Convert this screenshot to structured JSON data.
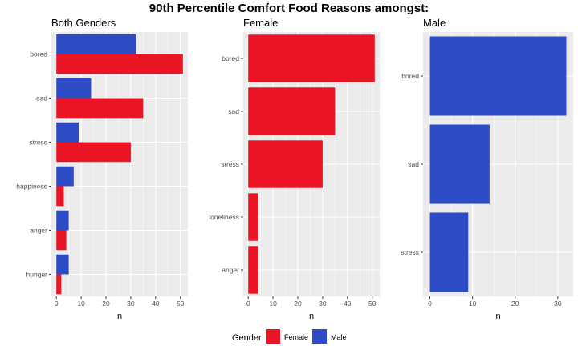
{
  "title": "90th Percentile Comfort Food Reasons amongst:",
  "chart_data": [
    {
      "type": "bar",
      "orientation": "horizontal",
      "title": "Both Genders",
      "xlabel": "n",
      "ylabel": "",
      "xlim": [
        -2,
        53
      ],
      "xticks": [
        0,
        10,
        20,
        30,
        40,
        50
      ],
      "categories": [
        "bored",
        "sad",
        "stress",
        "happiness",
        "anger",
        "hunger"
      ],
      "series": [
        {
          "name": "Male",
          "color": "#2E4BC6",
          "values": [
            32,
            14,
            9,
            7,
            5,
            5
          ]
        },
        {
          "name": "Female",
          "color": "#EA1424",
          "values": [
            51,
            35,
            30,
            3,
            4,
            2
          ]
        }
      ],
      "grid": true
    },
    {
      "type": "bar",
      "orientation": "horizontal",
      "title": "Female",
      "xlabel": "n",
      "ylabel": "",
      "xlim": [
        -2,
        53
      ],
      "xticks": [
        0,
        10,
        20,
        30,
        40,
        50
      ],
      "categories": [
        "bored",
        "sad",
        "stress",
        "loneliness",
        "anger"
      ],
      "series": [
        {
          "name": "Female",
          "color": "#EA1424",
          "values": [
            51,
            35,
            30,
            4,
            4
          ]
        }
      ],
      "grid": true
    },
    {
      "type": "bar",
      "orientation": "horizontal",
      "title": "Male",
      "xlabel": "n",
      "ylabel": "",
      "xlim": [
        -1.6,
        33.6
      ],
      "xticks": [
        0,
        10,
        20,
        30
      ],
      "categories": [
        "bored",
        "sad",
        "stress"
      ],
      "series": [
        {
          "name": "Male",
          "color": "#2E4BC6",
          "values": [
            32,
            14,
            9
          ]
        }
      ],
      "grid": true
    }
  ],
  "legend": {
    "title": "Gender",
    "position": "bottom",
    "entries": [
      {
        "label": "Female",
        "color": "#EA1424"
      },
      {
        "label": "Male",
        "color": "#2E4BC6"
      }
    ]
  }
}
